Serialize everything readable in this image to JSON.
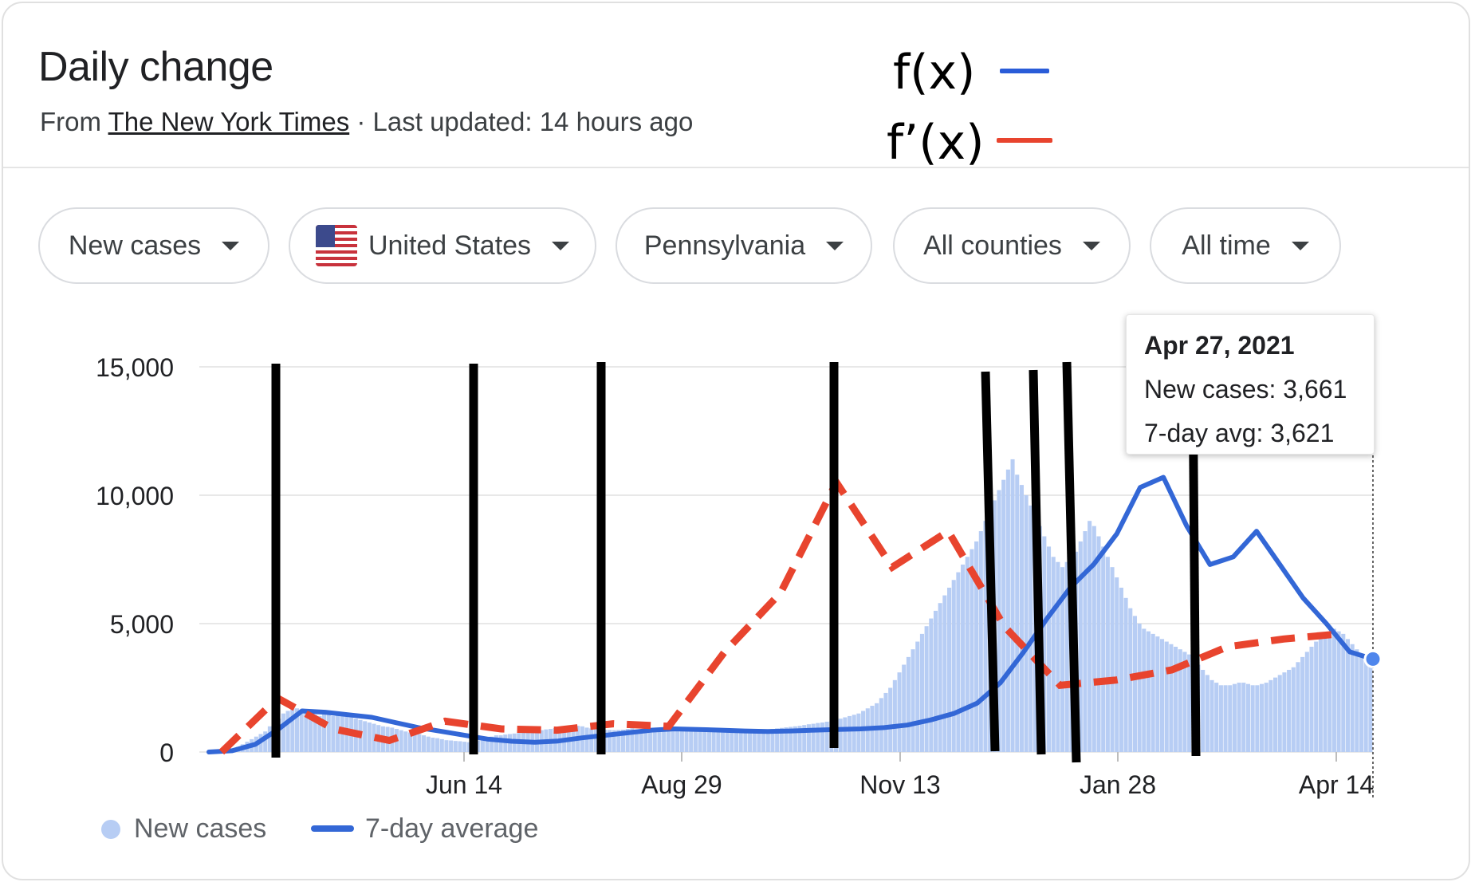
{
  "header": {
    "title": "Daily change",
    "source_prefix": "From",
    "source_name": "The New York Times",
    "updated": "· Last updated: 14 hours ago"
  },
  "annotations": {
    "fx_label": "f(x)",
    "fpx_label": "f’(x)",
    "fx_color": "#2a5cd8",
    "fpx_color": "#e8442e"
  },
  "filters": [
    {
      "label": "New cases"
    },
    {
      "label": "United States",
      "icon": "us-flag-icon"
    },
    {
      "label": "Pennsylvania"
    },
    {
      "label": "All counties"
    },
    {
      "label": "All time"
    }
  ],
  "tooltip": {
    "date": "Apr 27, 2021",
    "new_cases": "New cases: 3,661",
    "avg": "7-day avg: 3,621"
  },
  "legend": {
    "new_cases": "New cases",
    "avg": "7-day average"
  },
  "chart_data": {
    "type": "bar",
    "title": "Daily change",
    "x_tick_labels": [
      "Jun 14",
      "Aug 29",
      "Nov 13",
      "Jan 28",
      "Apr 14"
    ],
    "y_tick_labels": [
      "0",
      "5,000",
      "10,000",
      "15,000"
    ],
    "ylim": [
      0,
      15000
    ],
    "grid": true,
    "colors": {
      "bars": "#b7cdf4",
      "avg": "#3367d6",
      "dashed": "#e8442e",
      "vlines": "#000000"
    },
    "series": [
      {
        "name": "New cases",
        "type": "bar",
        "values": [
          0,
          0,
          10,
          40,
          80,
          130,
          200,
          300,
          400,
          500,
          600,
          700,
          800,
          1000,
          1150,
          1300,
          1500,
          1600,
          1750,
          1700,
          1650,
          1600,
          1500,
          1450,
          1400,
          1500,
          1450,
          1400,
          1500,
          1550,
          1500,
          1400,
          1300,
          1250,
          1200,
          1150,
          1100,
          1050,
          1000,
          980,
          950,
          900,
          850,
          800,
          760,
          720,
          700,
          650,
          600,
          560,
          540,
          500,
          460,
          450,
          430,
          420,
          400,
          380,
          400,
          450,
          500,
          550,
          600,
          650,
          650,
          680,
          700,
          720,
          740,
          760,
          780,
          800,
          820,
          850,
          880,
          900,
          930,
          950,
          960,
          980,
          1000,
          1020,
          1000,
          950,
          920,
          900,
          880,
          870,
          860,
          850,
          860,
          870,
          900,
          920,
          880,
          860,
          850,
          830,
          820,
          800,
          800,
          810,
          820,
          840,
          860,
          880,
          900,
          920,
          900,
          880,
          860,
          840,
          820,
          800,
          780,
          770,
          760,
          770,
          780,
          790,
          800,
          820,
          850,
          880,
          900,
          920,
          940,
          960,
          980,
          1000,
          1020,
          1050,
          1080,
          1100,
          1130,
          1150,
          1180,
          1200,
          1250,
          1300,
          1350,
          1400,
          1450,
          1500,
          1600,
          1700,
          1800,
          1900,
          2100,
          2300,
          2500,
          2800,
          3100,
          3400,
          3700,
          4000,
          4300,
          4600,
          4900,
          5200,
          5500,
          5800,
          6100,
          6400,
          6700,
          7000,
          7300,
          7600,
          7900,
          8200,
          8600,
          9000,
          9400,
          9800,
          10200,
          10600,
          11000,
          11400,
          10800,
          10400,
          10000,
          9600,
          9200,
          8800,
          8400,
          8000,
          7600,
          7400,
          7200,
          7400,
          7600,
          7800,
          8200,
          8600,
          9000,
          8800,
          8400,
          8000,
          7600,
          7200,
          6800,
          6400,
          6000,
          5600,
          5300,
          5000,
          4800,
          4700,
          4600,
          4500,
          4400,
          4300,
          4200,
          4100,
          4000,
          3900,
          3800,
          3600,
          3400,
          3200,
          3000,
          2800,
          2700,
          2600,
          2600,
          2600,
          2650,
          2700,
          2700,
          2650,
          2600,
          2600,
          2650,
          2700,
          2800,
          2900,
          3000,
          3100,
          3200,
          3300,
          3500,
          3700,
          3900,
          4100,
          4300,
          4500,
          4600,
          4700,
          4800,
          4700,
          4600,
          4400,
          4200,
          4000,
          3800,
          3700,
          3661
        ]
      },
      {
        "name": "7-day average",
        "type": "line",
        "x": [
          0,
          0.05,
          0.1,
          0.15,
          0.2,
          0.25,
          0.3,
          0.35,
          0.4,
          0.45,
          0.5,
          0.55,
          0.6,
          0.65,
          0.7,
          0.75,
          0.8,
          0.85,
          0.9,
          0.95,
          1.0,
          1.05,
          1.1,
          1.15,
          1.2,
          1.25,
          1.3,
          1.35,
          1.4,
          1.45,
          1.5,
          1.55,
          1.6,
          1.65,
          1.7,
          1.75,
          1.8,
          1.85,
          1.9,
          1.95,
          2.0,
          2.05,
          2.1,
          2.15,
          2.2,
          2.25,
          2.3,
          2.35,
          2.4,
          2.45,
          2.5
        ],
        "values": [
          0,
          50,
          300,
          900,
          1600,
          1550,
          1450,
          1350,
          1150,
          950,
          800,
          650,
          500,
          420,
          380,
          430,
          550,
          650,
          750,
          850,
          900,
          880,
          850,
          820,
          800,
          820,
          850,
          880,
          900,
          950,
          1050,
          1250,
          1500,
          1900,
          2700,
          3900,
          5200,
          6400,
          7300,
          8500,
          10300,
          10700,
          8800,
          7300,
          7600,
          8600,
          7300,
          6000,
          5000,
          3900,
          3621
        ]
      },
      {
        "name": "Dashed fit",
        "type": "line",
        "x": [
          0,
          0.5,
          1.0,
          1.5,
          2.0,
          2.5,
          3.0,
          3.5,
          4.0,
          4.5,
          5.0,
          5.5,
          6.0,
          6.5,
          7.0,
          7.5,
          8.0,
          8.5,
          9.0,
          9.5,
          10.0
        ],
        "values": [
          0,
          2100,
          900,
          450,
          1200,
          900,
          850,
          1100,
          1000,
          3900,
          6200,
          10500,
          7200,
          8600,
          4900,
          2600,
          2800,
          3200,
          4100,
          4400,
          4600
        ]
      }
    ]
  }
}
